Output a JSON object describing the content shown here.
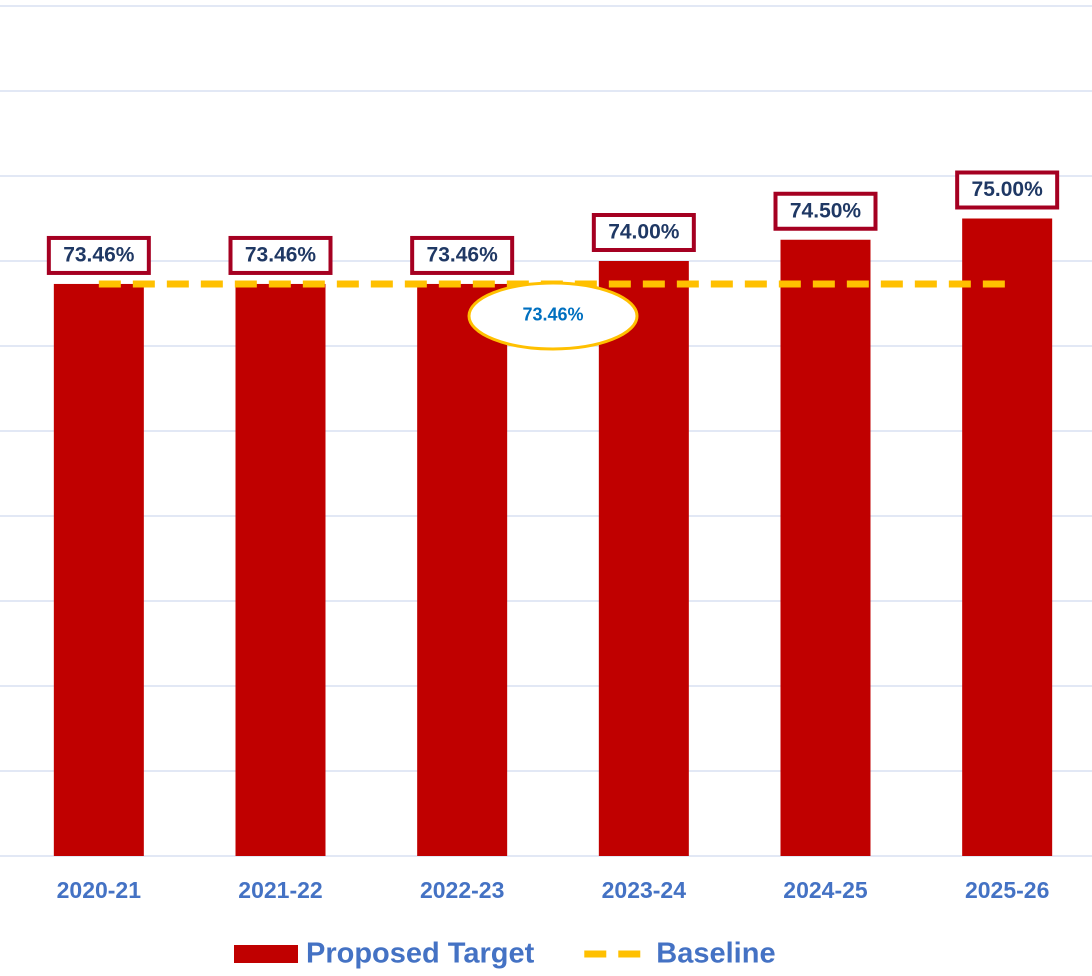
{
  "chart_data": {
    "type": "bar",
    "categories": [
      "2020-21",
      "2021-22",
      "2022-23",
      "2023-24",
      "2024-25",
      "2025-26"
    ],
    "series": [
      {
        "name": "Proposed Target",
        "type": "bar",
        "color": "#c00000",
        "values": [
          73.46,
          73.46,
          73.46,
          74.0,
          74.5,
          75.0
        ],
        "value_labels": [
          "73.46%",
          "73.46%",
          "73.46%",
          "74.00%",
          "74.50%",
          "75.00%"
        ]
      },
      {
        "name": "Baseline",
        "type": "line",
        "color": "#ffc000",
        "dashed": true,
        "values": [
          73.46,
          73.46,
          73.46,
          73.46,
          73.46,
          73.46
        ],
        "annotation": {
          "value": 73.46,
          "label": "73.46%"
        }
      }
    ],
    "ylim": [
      60,
      80
    ],
    "yticks": [
      60,
      62,
      64,
      66,
      68,
      70,
      72,
      74,
      76,
      78,
      80
    ],
    "grid": true,
    "legend": "bottom"
  }
}
